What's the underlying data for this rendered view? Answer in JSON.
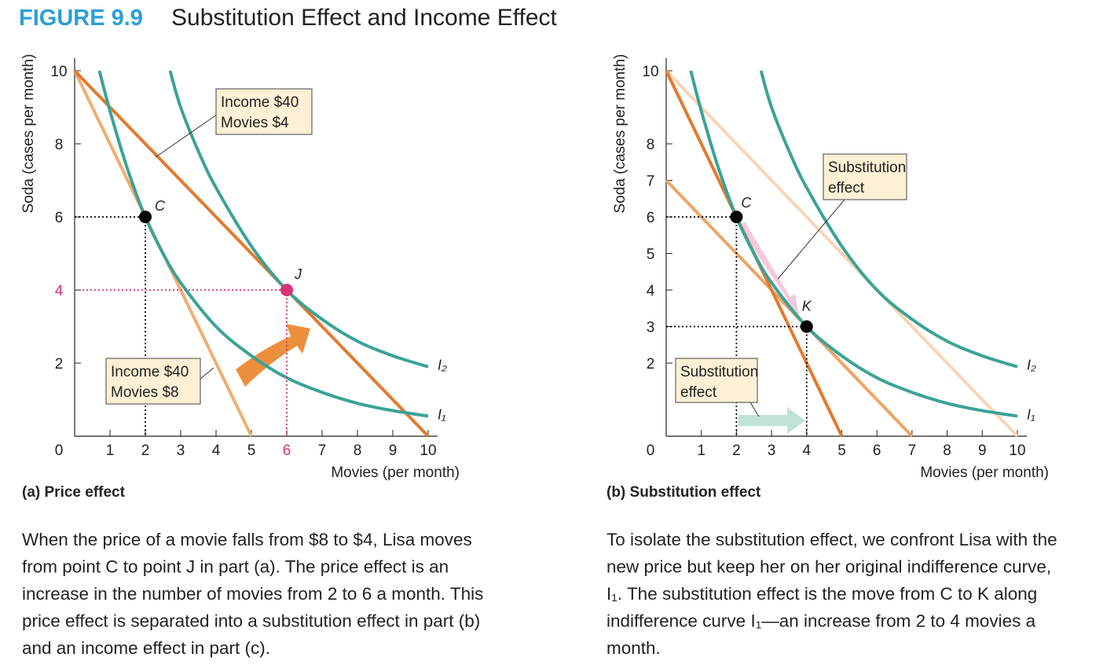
{
  "figure": {
    "label": "FIGURE 9.9",
    "title": "Substitution Effect and Income Effect"
  },
  "chart_data": [
    {
      "type": "line",
      "panel": "(a) Price effect",
      "x_label": "Movies (per month)",
      "y_label": "Soda (cases per month)",
      "xlim": [
        0,
        10
      ],
      "ylim": [
        0,
        10
      ],
      "xticks": [
        0,
        1,
        2,
        3,
        4,
        5,
        6,
        7,
        8,
        9,
        10
      ],
      "yticks": [
        2,
        4,
        6,
        8,
        10
      ],
      "lines": [
        {
          "x": [
            0,
            5
          ],
          "values": [
            10,
            0
          ],
          "color": "#f2ad72"
        },
        {
          "x": [
            0,
            10
          ],
          "values": [
            10,
            0
          ],
          "color": "#e27a2e"
        }
      ],
      "series": [
        {
          "name": "I₁",
          "color": "#3aa395",
          "x": [
            0.7,
            1,
            1.5,
            2,
            2.5,
            3,
            4,
            5,
            6,
            7,
            8,
            9,
            10
          ],
          "values": [
            10,
            8.9,
            7.3,
            6,
            5.0,
            4.2,
            3,
            2.2,
            1.6,
            1.2,
            0.9,
            0.7,
            0.55
          ]
        },
        {
          "name": "I₂",
          "color": "#3aa395",
          "x": [
            2.7,
            3,
            3.5,
            4,
            5,
            6,
            7,
            8,
            9,
            10
          ],
          "values": [
            10,
            9,
            7.8,
            6.8,
            5.2,
            4,
            3.2,
            2.6,
            2.2,
            1.9
          ]
        }
      ],
      "points": [
        {
          "label": "C",
          "x": 2,
          "y": 6,
          "color": "#000000"
        },
        {
          "label": "J",
          "x": 6,
          "y": 4,
          "color": "#d6337a"
        }
      ],
      "annotations": [
        [
          "Income $40",
          "Movies $4"
        ],
        [
          "Income $40",
          "Movies $8"
        ]
      ],
      "description": [
        "When the price of a movie falls from $8 to $4, Lisa moves",
        "from point C to point J in part (a). The price effect is an",
        "increase in the number of movies from 2 to 6 a month. This",
        "price effect is separated into a substitution effect in part (b)",
        "and an income effect in part (c)."
      ]
    },
    {
      "type": "line",
      "panel": "(b) Substitution effect",
      "x_label": "Movies (per month)",
      "y_label": "Soda (cases per month)",
      "xlim": [
        0,
        10
      ],
      "ylim": [
        0,
        10
      ],
      "xticks": [
        0,
        1,
        2,
        3,
        4,
        5,
        6,
        7,
        8,
        9,
        10
      ],
      "yticks": [
        2,
        3,
        4,
        5,
        6,
        7,
        8,
        10
      ],
      "lines": [
        {
          "x": [
            0,
            10
          ],
          "values": [
            10,
            0
          ],
          "color": "#f7d5b5"
        },
        {
          "x": [
            0,
            7
          ],
          "values": [
            7,
            0
          ],
          "color": "#eea464"
        },
        {
          "x": [
            0,
            5
          ],
          "values": [
            10,
            0
          ],
          "color": "#e27a2e"
        }
      ],
      "series": [
        {
          "name": "I₁",
          "color": "#3aa395",
          "x": [
            0.7,
            1,
            1.5,
            2,
            2.5,
            3,
            4,
            5,
            6,
            7,
            8,
            9,
            10
          ],
          "values": [
            10,
            8.9,
            7.3,
            6,
            5.0,
            4.2,
            3,
            2.2,
            1.6,
            1.2,
            0.9,
            0.7,
            0.55
          ]
        },
        {
          "name": "I₂",
          "color": "#3aa395",
          "x": [
            2.7,
            3,
            3.5,
            4,
            5,
            6,
            7,
            8,
            9,
            10
          ],
          "values": [
            10,
            9,
            7.8,
            6.8,
            5.2,
            4,
            3.2,
            2.6,
            2.2,
            1.9
          ]
        }
      ],
      "points": [
        {
          "label": "C",
          "x": 2,
          "y": 6,
          "color": "#000000"
        },
        {
          "label": "K",
          "x": 4,
          "y": 3,
          "color": "#000000"
        }
      ],
      "annotations": [
        [
          "Substitution",
          "effect"
        ],
        [
          "Substitution",
          "effect"
        ]
      ],
      "description": [
        "To isolate the substitution effect, we confront Lisa with the",
        "new price but keep her on her original indifference curve,",
        "I₁. The substitution effect is the move from C to K along",
        "indifference curve I₁—an increase from 2 to 4 movies a",
        "month."
      ]
    }
  ]
}
